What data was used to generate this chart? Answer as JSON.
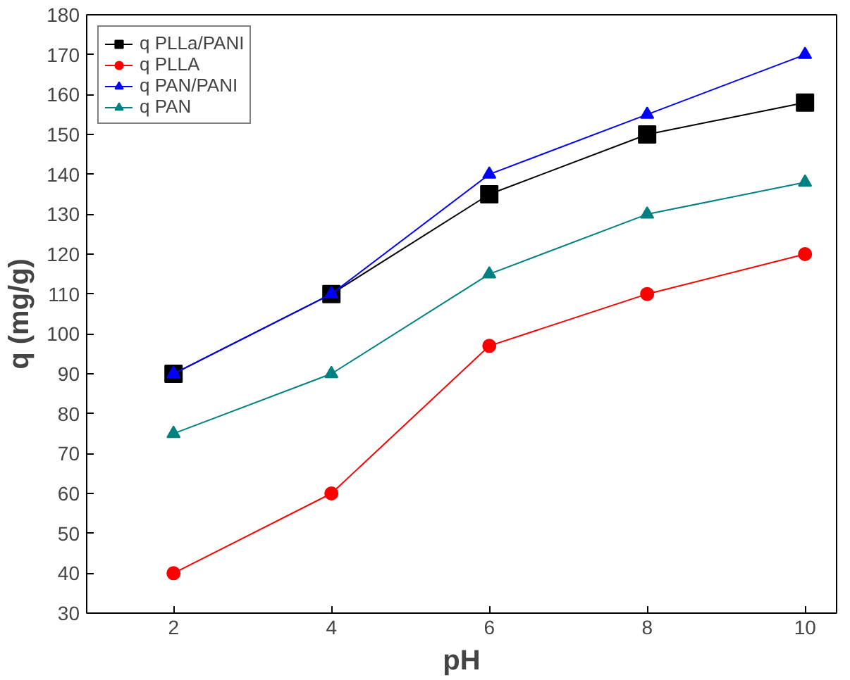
{
  "chart_data": {
    "type": "line",
    "xlabel": "pH",
    "ylabel": "q (mg/g)",
    "x": [
      2,
      4,
      6,
      8,
      10
    ],
    "series": [
      {
        "name": "q PLLa/PANI",
        "color": "#000000",
        "marker": "square",
        "values": [
          90,
          110,
          135,
          150,
          158
        ]
      },
      {
        "name": "q PLLA",
        "color": "#ff0000",
        "marker": "circle",
        "values": [
          40,
          60,
          97,
          110,
          120
        ]
      },
      {
        "name": "q PAN/PANI",
        "color": "#0000ff",
        "marker": "triangle",
        "values": [
          90,
          110,
          140,
          155,
          170
        ]
      },
      {
        "name": "q PAN",
        "color": "#008080",
        "marker": "triangle",
        "values": [
          75,
          90,
          115,
          130,
          138
        ]
      }
    ],
    "xlim": [
      0.9,
      10.4
    ],
    "xticks": [
      2,
      4,
      6,
      8,
      10
    ],
    "ylim": [
      30,
      180
    ],
    "yticks": [
      30,
      40,
      50,
      60,
      70,
      80,
      90,
      100,
      110,
      120,
      130,
      140,
      150,
      160,
      170,
      180
    ],
    "grid": false,
    "legend": "top left",
    "line_style": "solid"
  }
}
